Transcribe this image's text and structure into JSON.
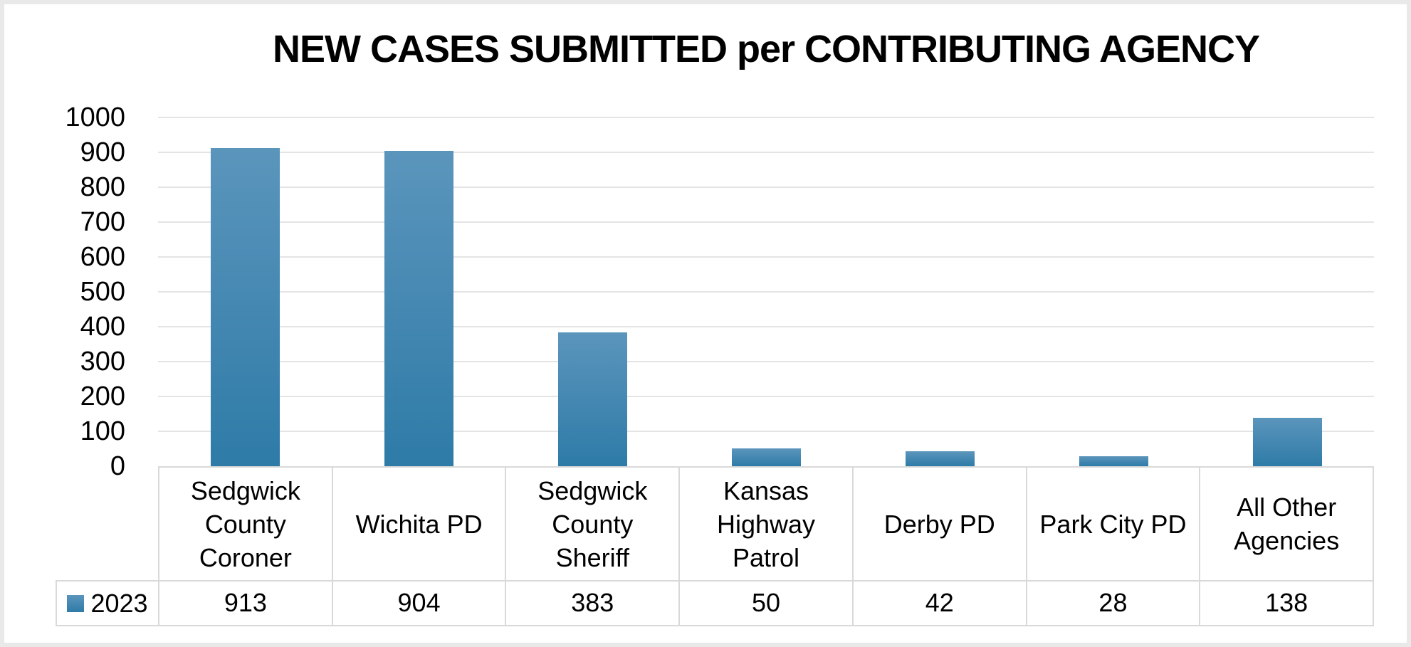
{
  "chart_data": {
    "type": "bar",
    "title": "NEW CASES SUBMITTED per CONTRIBUTING AGENCY",
    "categories": [
      "Sedgwick County Coroner",
      "Wichita PD",
      "Sedgwick County Sheriff",
      "Kansas Highway Patrol",
      "Derby PD",
      "Park City PD",
      "All Other Agencies"
    ],
    "category_lines": [
      [
        "Sedgwick",
        "County",
        "Coroner"
      ],
      [
        "Wichita PD"
      ],
      [
        "Sedgwick",
        "County",
        "Sheriff"
      ],
      [
        "Kansas",
        "Highway",
        "Patrol"
      ],
      [
        "Derby PD"
      ],
      [
        "Park City PD"
      ],
      [
        "All Other",
        "Agencies"
      ]
    ],
    "series": [
      {
        "name": "2023",
        "values": [
          913,
          904,
          383,
          50,
          42,
          28,
          138
        ]
      }
    ],
    "xlabel": "",
    "ylabel": "",
    "ylim": [
      0,
      1000
    ],
    "yticks": [
      1000,
      900,
      800,
      700,
      600,
      500,
      400,
      300,
      200,
      100,
      0
    ],
    "grid": "horizontal-major",
    "legend_position": "bottom-table-left",
    "data_table_shown": true,
    "colors": {
      "bar_gradient_top": "#5b95bc",
      "bar_gradient_bottom": "#2e7ba8",
      "gridline": "#e4e4e4",
      "table_border": "#d9d9d9",
      "frame": "#e9e9e9",
      "text": "#000000"
    }
  }
}
